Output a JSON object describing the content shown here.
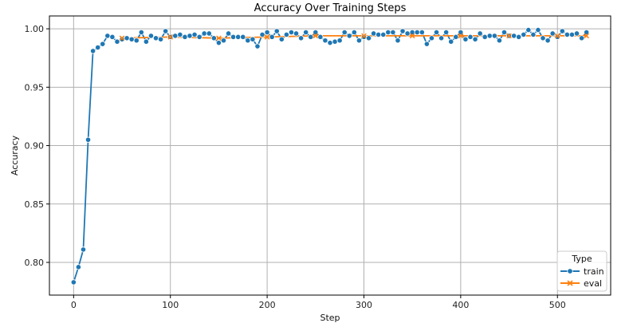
{
  "chart_data": {
    "type": "line",
    "title": "Accuracy Over Training Steps",
    "xlabel": "Step",
    "ylabel": "Accuracy",
    "xlim": [
      -25,
      555
    ],
    "ylim": [
      0.772,
      1.011
    ],
    "xticks": [
      0,
      100,
      200,
      300,
      400,
      500
    ],
    "yticks": [
      0.8,
      0.85,
      0.9,
      0.95,
      1.0
    ],
    "ytick_format": 2,
    "grid": true,
    "legend": {
      "title": "Type",
      "position": "lower-right"
    },
    "series": [
      {
        "name": "train",
        "color": "#1f77b4",
        "marker": "circle",
        "x": [
          0,
          5,
          10,
          15,
          20,
          25,
          30,
          35,
          40,
          45,
          50,
          55,
          60,
          65,
          70,
          75,
          80,
          85,
          90,
          95,
          100,
          105,
          110,
          115,
          120,
          125,
          130,
          135,
          140,
          145,
          150,
          155,
          160,
          165,
          170,
          175,
          180,
          185,
          190,
          195,
          200,
          205,
          210,
          215,
          220,
          225,
          230,
          235,
          240,
          245,
          250,
          255,
          260,
          265,
          270,
          275,
          280,
          285,
          290,
          295,
          300,
          305,
          310,
          315,
          320,
          325,
          330,
          335,
          340,
          345,
          350,
          355,
          360,
          365,
          370,
          375,
          380,
          385,
          390,
          395,
          400,
          405,
          410,
          415,
          420,
          425,
          430,
          435,
          440,
          445,
          450,
          455,
          460,
          465,
          470,
          475,
          480,
          485,
          490,
          495,
          500,
          505,
          510,
          515,
          520,
          525,
          530
        ],
        "y": [
          0.783,
          0.796,
          0.811,
          0.905,
          0.981,
          0.984,
          0.987,
          0.994,
          0.993,
          0.989,
          0.991,
          0.992,
          0.991,
          0.99,
          0.997,
          0.989,
          0.994,
          0.992,
          0.991,
          0.998,
          0.993,
          0.994,
          0.995,
          0.993,
          0.994,
          0.995,
          0.993,
          0.996,
          0.996,
          0.992,
          0.988,
          0.99,
          0.996,
          0.993,
          0.993,
          0.993,
          0.99,
          0.991,
          0.985,
          0.995,
          0.997,
          0.993,
          0.998,
          0.991,
          0.995,
          0.997,
          0.996,
          0.992,
          0.997,
          0.993,
          0.997,
          0.993,
          0.99,
          0.988,
          0.989,
          0.99,
          0.997,
          0.994,
          0.997,
          0.99,
          0.993,
          0.992,
          0.996,
          0.995,
          0.995,
          0.997,
          0.997,
          0.99,
          0.998,
          0.996,
          0.997,
          0.997,
          0.997,
          0.987,
          0.992,
          0.997,
          0.992,
          0.997,
          0.989,
          0.993,
          0.997,
          0.991,
          0.993,
          0.991,
          0.996,
          0.993,
          0.994,
          0.994,
          0.99,
          0.997,
          0.994,
          0.994,
          0.993,
          0.995,
          0.999,
          0.995,
          0.999,
          0.992,
          0.99,
          0.996,
          0.993,
          0.998,
          0.995,
          0.995,
          0.996,
          0.992,
          0.997
        ]
      },
      {
        "name": "eval",
        "color": "#ff7f0e",
        "marker": "x",
        "x": [
          50,
          100,
          150,
          200,
          250,
          300,
          350,
          400,
          450,
          500,
          530
        ],
        "y": [
          0.992,
          0.993,
          0.992,
          0.993,
          0.994,
          0.994,
          0.994,
          0.994,
          0.994,
          0.994,
          0.994
        ]
      }
    ]
  }
}
